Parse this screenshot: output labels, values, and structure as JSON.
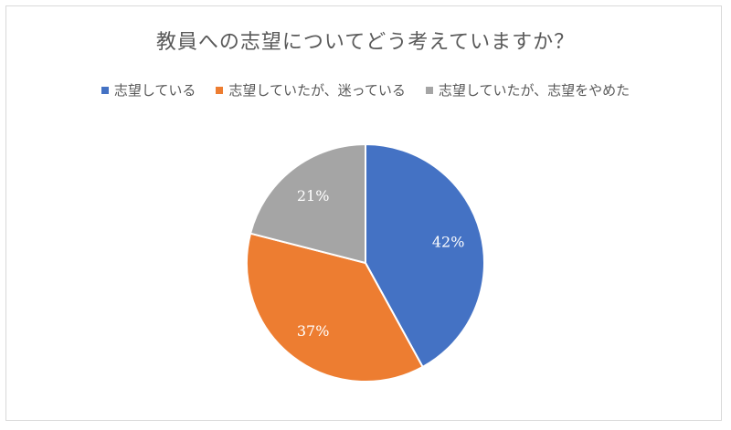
{
  "chart_data": {
    "type": "pie",
    "title": "教員への志望についてどう考えていますか？",
    "categories": [
      "志望している",
      "志望していたが、迷っている",
      "志望していたが、志望をやめた"
    ],
    "values": [
      42,
      37,
      21
    ],
    "labels": [
      "42%",
      "37%",
      "21%"
    ],
    "colors": [
      "#4472c4",
      "#ed7d31",
      "#a5a5a5"
    ],
    "legend_position": "top"
  }
}
